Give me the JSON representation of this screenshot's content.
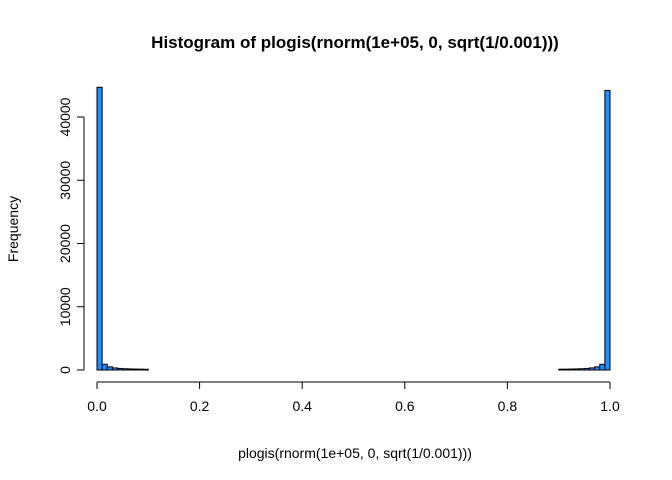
{
  "chart_data": {
    "type": "bar",
    "title": "Histogram of plogis(rnorm(1e+05, 0, sqrt(1/0.001)))",
    "xlabel": "plogis(rnorm(1e+05, 0, sqrt(1/0.001)))",
    "ylabel": "Frequency",
    "xlim": [
      0,
      1
    ],
    "ylim": [
      0,
      45000
    ],
    "x_ticks": [
      0.0,
      0.2,
      0.4,
      0.6,
      0.8,
      1.0
    ],
    "x_tick_labels": [
      "0.0",
      "0.2",
      "0.4",
      "0.6",
      "0.8",
      "1.0"
    ],
    "y_ticks": [
      0,
      10000,
      20000,
      30000,
      40000
    ],
    "y_tick_labels": [
      "0",
      "10000",
      "20000",
      "30000",
      "40000"
    ],
    "bin_width": 0.01,
    "bar_color": "#1E90FF",
    "bins": [
      {
        "start": 0.0,
        "count": 44700
      },
      {
        "start": 0.01,
        "count": 900
      },
      {
        "start": 0.02,
        "count": 500
      },
      {
        "start": 0.03,
        "count": 330
      },
      {
        "start": 0.04,
        "count": 250
      },
      {
        "start": 0.05,
        "count": 200
      },
      {
        "start": 0.06,
        "count": 170
      },
      {
        "start": 0.07,
        "count": 150
      },
      {
        "start": 0.08,
        "count": 130
      },
      {
        "start": 0.09,
        "count": 120
      },
      {
        "start": 0.9,
        "count": 120
      },
      {
        "start": 0.91,
        "count": 130
      },
      {
        "start": 0.92,
        "count": 150
      },
      {
        "start": 0.93,
        "count": 170
      },
      {
        "start": 0.94,
        "count": 200
      },
      {
        "start": 0.95,
        "count": 250
      },
      {
        "start": 0.96,
        "count": 330
      },
      {
        "start": 0.97,
        "count": 500
      },
      {
        "start": 0.98,
        "count": 900
      },
      {
        "start": 0.99,
        "count": 44200
      }
    ]
  }
}
